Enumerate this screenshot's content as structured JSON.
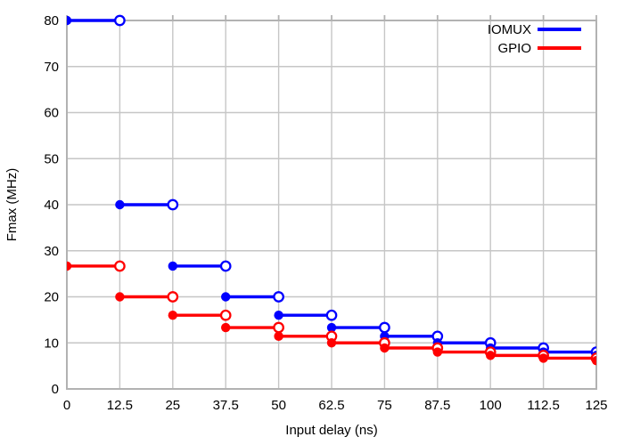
{
  "chart_data": {
    "type": "line",
    "subtype": "step-post",
    "title": "",
    "xlabel": "Input delay (ns)",
    "ylabel": "Fmax (MHz)",
    "xlim": [
      0,
      125
    ],
    "ylim": [
      0,
      80
    ],
    "grid": true,
    "legend_position": "top-right-inside",
    "x": [
      0,
      12.5,
      25,
      37.5,
      50,
      62.5,
      75,
      87.5,
      100,
      112.5,
      125
    ],
    "xtick_labels": [
      "0",
      "12.5",
      "25",
      "37.5",
      "50",
      "62.5",
      "75",
      "87.5",
      "100",
      "112.5",
      "125"
    ],
    "yticks": [
      0,
      10,
      20,
      30,
      40,
      50,
      60,
      70,
      80
    ],
    "ytick_labels": [
      "0",
      "10",
      "20",
      "30",
      "40",
      "50",
      "60",
      "70",
      "80"
    ],
    "series": [
      {
        "name": "IOMUX",
        "color": "#0000ff",
        "values": [
          80,
          40,
          26.67,
          20,
          16,
          13.33,
          11.43,
          10,
          8.89,
          8,
          7.27
        ]
      },
      {
        "name": "GPIO",
        "color": "#ff0000",
        "values": [
          26.67,
          20,
          16,
          13.33,
          11.43,
          10,
          8.89,
          8,
          7.27,
          6.67,
          6.15
        ]
      }
    ],
    "markers": {
      "segment_start": "filled-circle",
      "segment_end": "open-circle"
    }
  },
  "colors": {
    "background": "#ffffff",
    "grid": "#c6c6c6",
    "border": "#b2b2b2",
    "text": "#000000"
  }
}
